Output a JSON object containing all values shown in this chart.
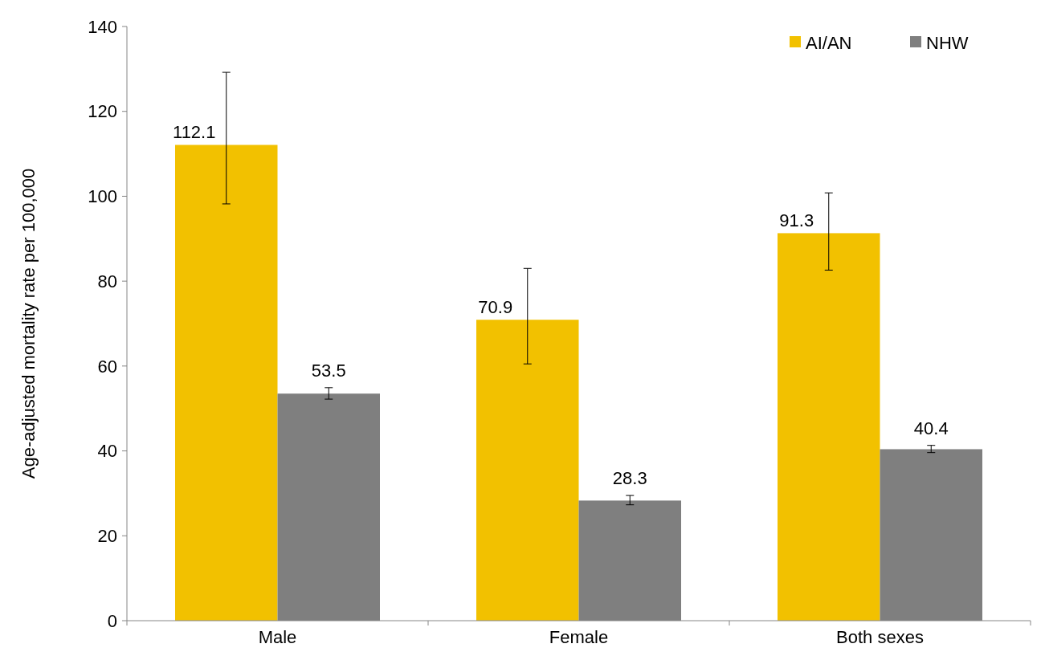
{
  "chart_data": {
    "type": "bar",
    "ylabel": "Age-adjusted mortality rate per 100,000",
    "categories": [
      "Male",
      "Female",
      "Both sexes"
    ],
    "series": [
      {
        "name": "AI/AN",
        "color": "#f2c100",
        "values": [
          112.1,
          70.9,
          91.3
        ],
        "errors": [
          [
            98.2,
            129.2
          ],
          [
            60.5,
            83.0
          ],
          [
            82.6,
            100.8
          ]
        ]
      },
      {
        "name": "NHW",
        "color": "#7f7f7f",
        "values": [
          53.5,
          28.3,
          40.4
        ],
        "errors": [
          [
            52.2,
            54.9
          ],
          [
            27.3,
            29.5
          ],
          [
            39.6,
            41.3
          ]
        ]
      }
    ],
    "ylim": [
      0,
      140
    ],
    "yticks": [
      0,
      20,
      40,
      60,
      80,
      100,
      120,
      140
    ],
    "data_labels": true,
    "legend": "top right",
    "grid": false
  }
}
